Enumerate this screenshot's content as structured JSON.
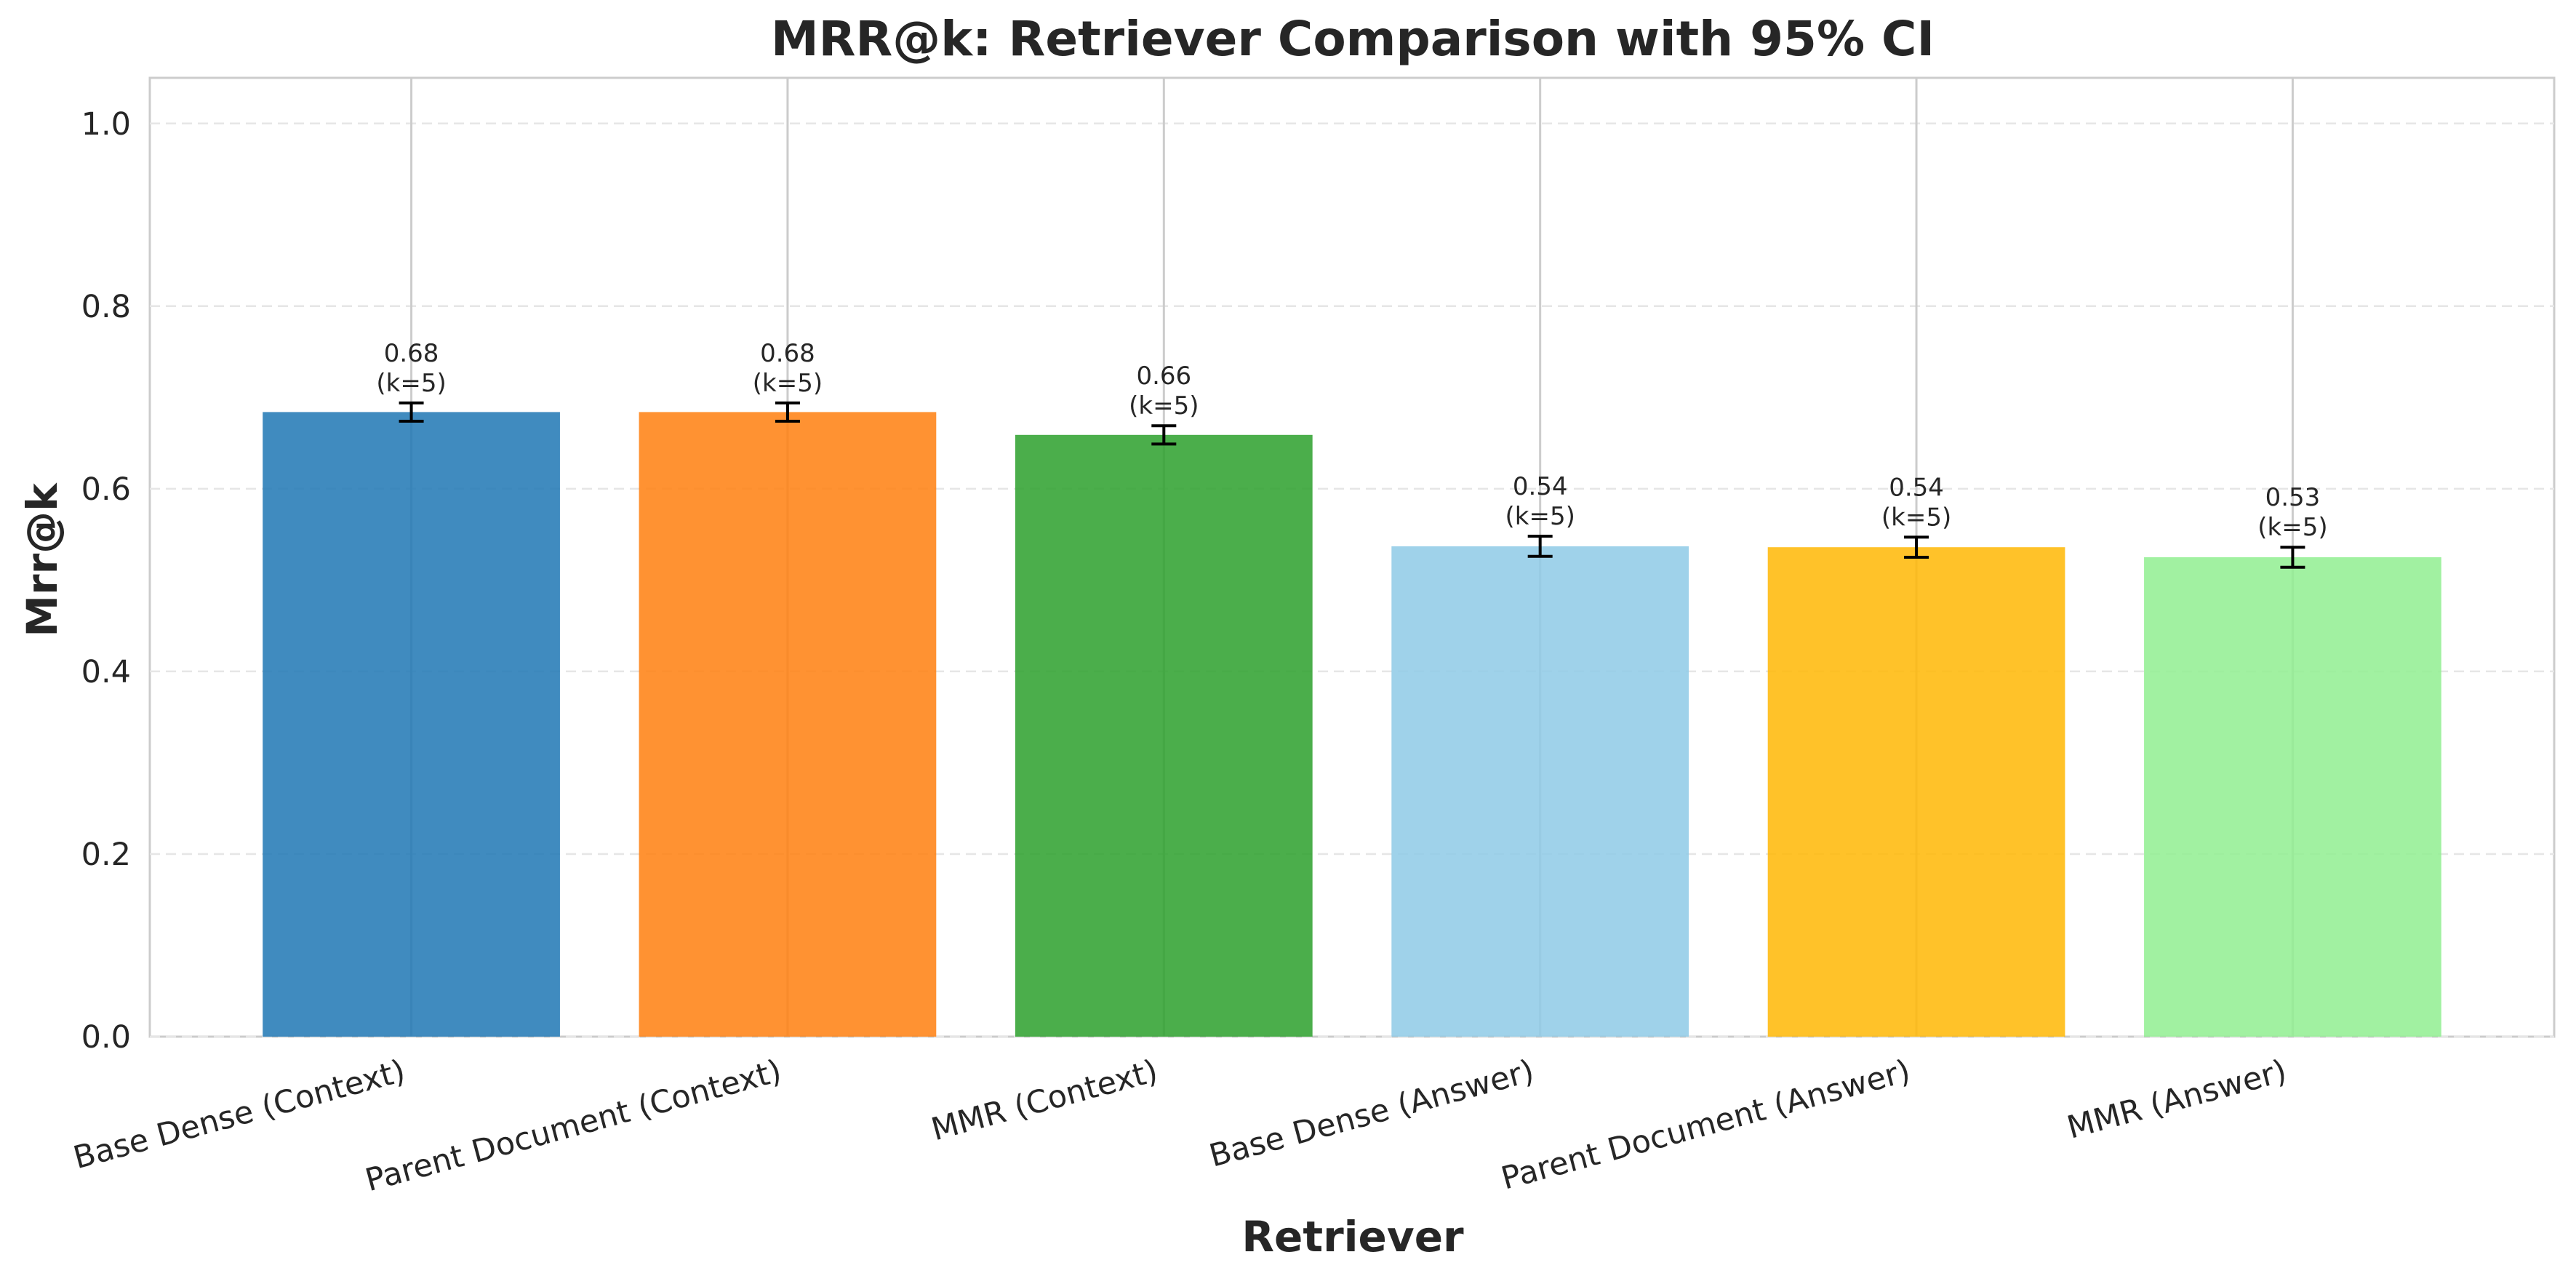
{
  "chart_data": {
    "type": "bar",
    "title": "MRR@k: Retriever Comparison with 95% CI",
    "xlabel": "Retriever",
    "ylabel": "Mrr@k",
    "ylim": [
      0,
      1.05
    ],
    "yticks": [
      "0.0",
      "0.2",
      "0.4",
      "0.6",
      "0.8",
      "1.0"
    ],
    "grid": true,
    "categories": [
      "Base Dense (Context)",
      "Parent Document (Context)",
      "MMR (Context)",
      "Base Dense (Answer)",
      "Parent Document (Answer)",
      "MMR (Answer)"
    ],
    "values": [
      0.684,
      0.684,
      0.659,
      0.537,
      0.536,
      0.525
    ],
    "ci_low": [
      0.674,
      0.674,
      0.649,
      0.526,
      0.525,
      0.514
    ],
    "ci_high": [
      0.694,
      0.694,
      0.669,
      0.548,
      0.547,
      0.536
    ],
    "value_labels": [
      "0.68",
      "0.68",
      "0.66",
      "0.54",
      "0.54",
      "0.53"
    ],
    "k_labels": [
      "(k=5)",
      "(k=5)",
      "(k=5)",
      "(k=5)",
      "(k=5)",
      "(k=5)"
    ],
    "colors": [
      "#1f77b4",
      "#ff7f0e",
      "#2ca02c",
      "#8ecae6",
      "#ffb703",
      "#90ee90"
    ]
  }
}
